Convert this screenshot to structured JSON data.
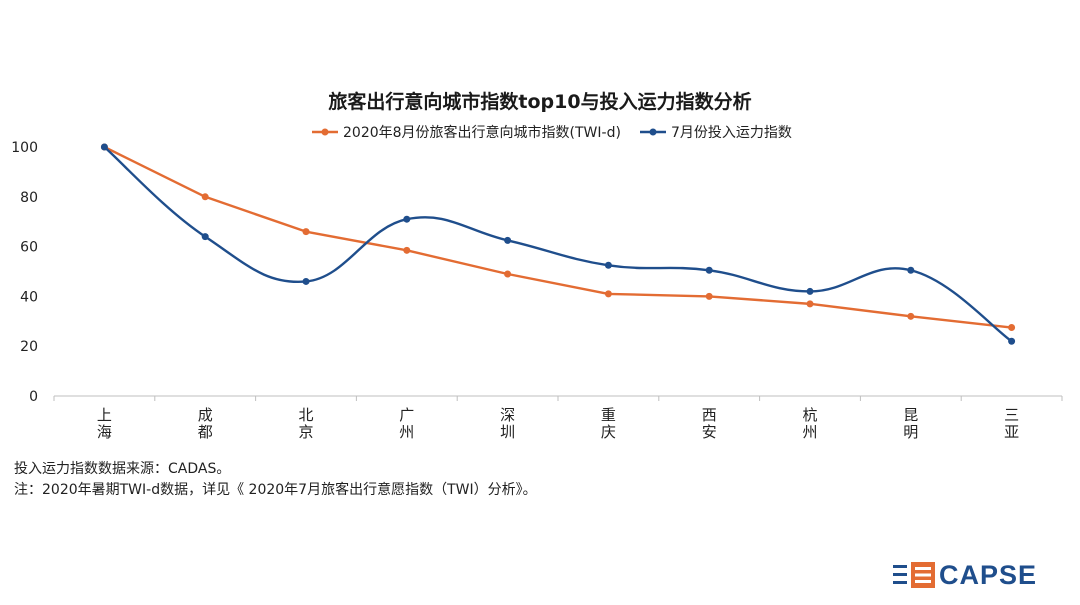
{
  "chart_data": {
    "type": "line",
    "title": "旅客出行意向城市指数top10与投入运力指数分析",
    "categories": [
      [
        "上",
        "海"
      ],
      [
        "成",
        "都"
      ],
      [
        "北",
        "京"
      ],
      [
        "广",
        "州"
      ],
      [
        "深",
        "圳"
      ],
      [
        "重",
        "庆"
      ],
      [
        "西",
        "安"
      ],
      [
        "杭",
        "州"
      ],
      [
        "昆",
        "明"
      ],
      [
        "三",
        "亚"
      ]
    ],
    "series": [
      {
        "name": "2020年8月份旅客出行意向城市指数(TWI-d)",
        "color": "#e36c33",
        "smooth": false,
        "values": [
          100,
          80,
          66,
          58.5,
          49,
          41,
          40,
          37,
          32,
          27.5
        ]
      },
      {
        "name": "7月份投入运力指数",
        "color": "#1f4e8c",
        "smooth": true,
        "values": [
          100,
          64,
          46,
          71,
          62.5,
          52.5,
          50.5,
          42,
          50.5,
          22
        ]
      }
    ],
    "ylim": [
      0,
      100
    ],
    "yticks": [
      0,
      20,
      40,
      60,
      80,
      100
    ],
    "grid": false,
    "legend_position": "top"
  },
  "notes": [
    "投入运力指数数据来源：CADAS。",
    "注：2020年暑期TWI-d数据，详见《 2020年7月旅客出行意愿指数（TWI）分析》。"
  ],
  "logo": {
    "text": "CAPSE",
    "color": "#1f4e8c",
    "accent": "#e36c33"
  }
}
